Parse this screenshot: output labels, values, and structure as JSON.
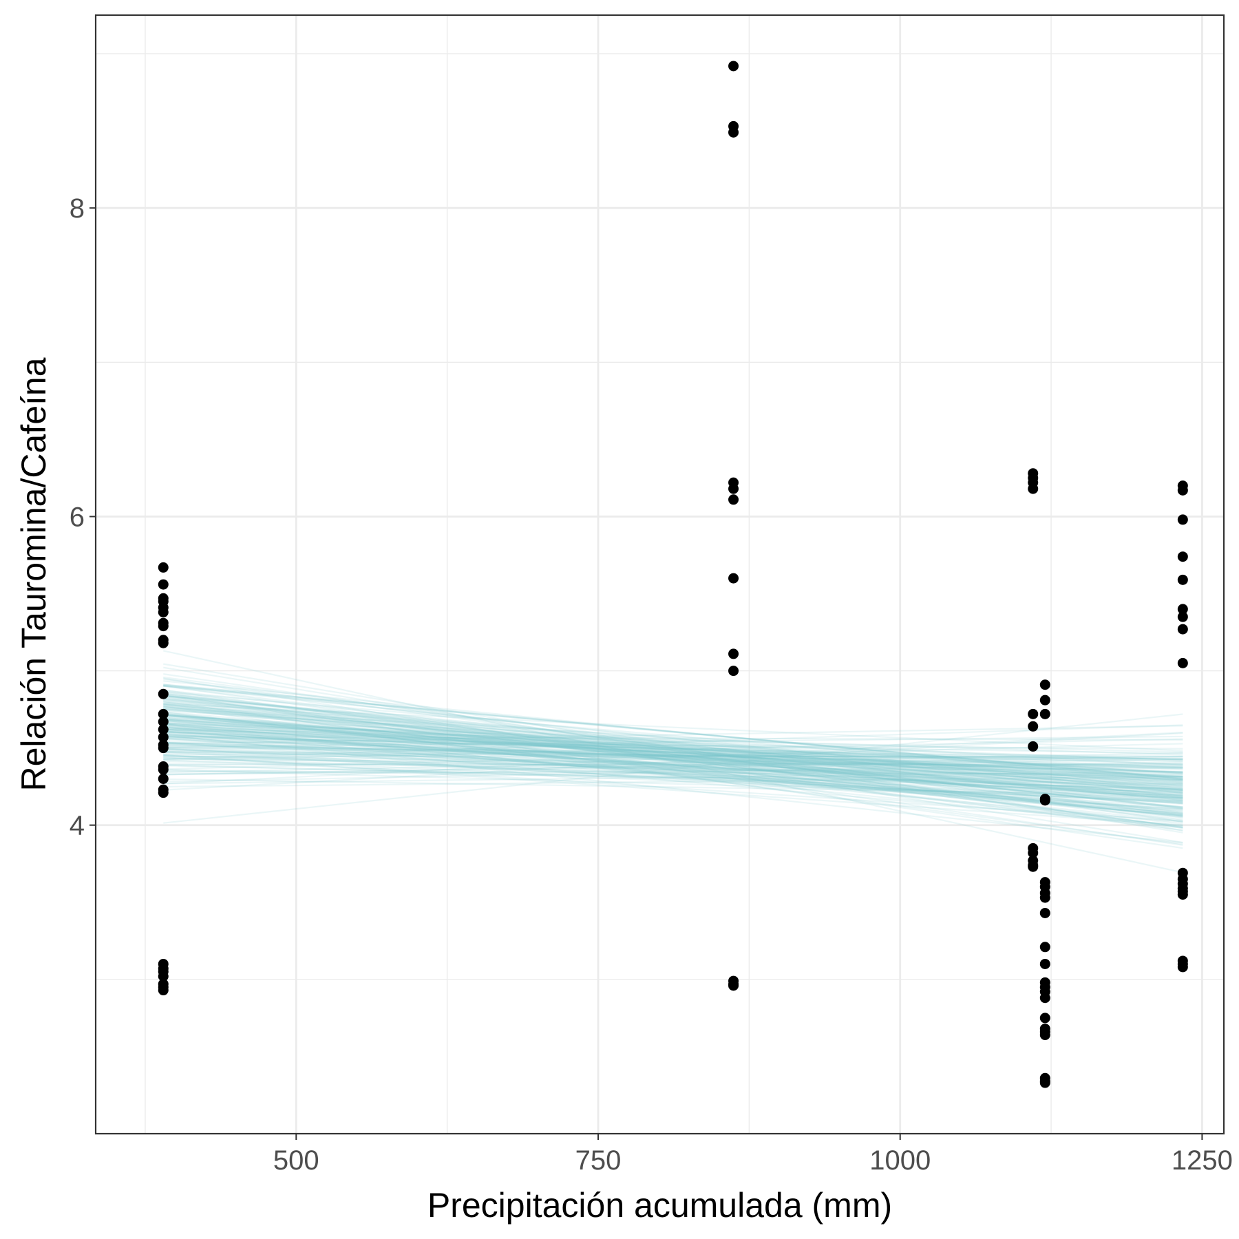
{
  "chart_data": {
    "type": "scatter",
    "xlabel": "Precipitación acumulada (mm)",
    "ylabel": "Relación Tauromina/Cafeína",
    "xlim": [
      334,
      1268
    ],
    "ylim": [
      2.0,
      9.25
    ],
    "x_ticks": [
      500,
      750,
      1000,
      1250
    ],
    "x_tick_labels": [
      "500",
      "750",
      "1000",
      "1250"
    ],
    "x_minor": [
      375,
      625,
      875,
      1125
    ],
    "y_ticks": [
      4,
      6,
      8
    ],
    "y_tick_labels": [
      "4",
      "6",
      "8"
    ],
    "y_minor": [
      3,
      5,
      7,
      9
    ],
    "grid": true,
    "points_color": "#000000",
    "lines_color": "#7ec4cc",
    "series": [
      {
        "x": [
          390,
          390,
          390,
          390,
          390,
          390,
          390,
          390,
          390,
          390,
          390,
          390,
          390,
          390,
          390,
          390,
          390,
          390,
          390,
          390,
          390,
          390,
          390,
          390,
          390,
          390,
          390,
          390,
          390
        ],
        "y": [
          5.67,
          5.56,
          5.47,
          5.45,
          5.41,
          5.38,
          5.31,
          5.29,
          5.2,
          5.18,
          4.85,
          4.72,
          4.67,
          4.62,
          4.57,
          4.52,
          4.5,
          4.38,
          4.36,
          4.3,
          4.23,
          4.21,
          3.1,
          3.07,
          3.05,
          3.02,
          2.97,
          2.95,
          2.93
        ]
      },
      {
        "x": [
          862,
          862,
          862,
          862,
          862,
          862,
          862,
          862,
          862,
          862,
          862,
          862
        ],
        "y": [
          8.92,
          8.53,
          8.49,
          6.22,
          6.18,
          6.11,
          5.6,
          5.11,
          5.0,
          2.99,
          2.97,
          2.96
        ]
      },
      {
        "x": [
          1110,
          1110,
          1110,
          1110,
          1110,
          1110,
          1110,
          1110,
          1110,
          1110,
          1110,
          1110
        ],
        "y": [
          6.28,
          6.25,
          6.22,
          6.18,
          4.72,
          4.64,
          4.51,
          3.85,
          3.82,
          3.77,
          3.74,
          3.73
        ]
      },
      {
        "x": [
          1120,
          1120,
          1120,
          1120,
          1120,
          1120,
          1120,
          1120,
          1120,
          1120,
          1120,
          1120,
          1120,
          1120,
          1120,
          1120,
          1120,
          1120,
          1120,
          1120,
          1120,
          1120,
          1120
        ],
        "y": [
          4.91,
          4.81,
          4.72,
          4.17,
          4.16,
          3.63,
          3.6,
          3.56,
          3.53,
          3.43,
          3.21,
          3.1,
          2.98,
          2.95,
          2.92,
          2.88,
          2.75,
          2.68,
          2.66,
          2.64,
          2.36,
          2.34,
          2.33
        ]
      },
      {
        "x": [
          1234,
          1234,
          1234,
          1234,
          1234,
          1234,
          1234,
          1234,
          1234,
          1234,
          1234,
          1234,
          1234,
          1234,
          1234,
          1234,
          1234,
          1234
        ],
        "y": [
          6.2,
          6.17,
          5.98,
          5.74,
          5.59,
          5.4,
          5.35,
          5.27,
          5.05,
          3.69,
          3.65,
          3.62,
          3.59,
          3.57,
          3.55,
          3.12,
          3.1,
          3.08
        ]
      }
    ],
    "regression_lines": {
      "x_start": 390,
      "x_end": 1234,
      "count": 200,
      "y_start_mean": 4.64,
      "y_start_sd": 0.18,
      "y_end_mean": 4.23,
      "y_end_sd": 0.17,
      "correlation": -0.55
    }
  }
}
